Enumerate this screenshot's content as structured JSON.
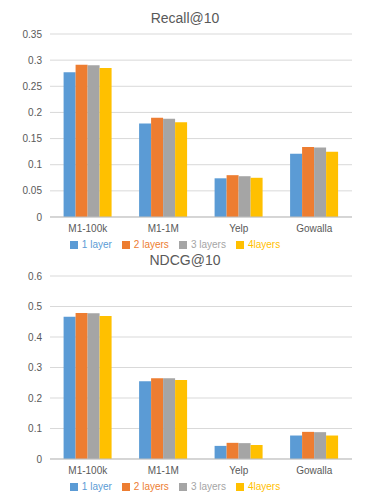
{
  "chart_data": [
    {
      "type": "bar",
      "title": "Recall@10",
      "categories": [
        "M1-100k",
        "M1-1M",
        "Yelp",
        "Gowalla"
      ],
      "series": [
        {
          "name": "1 layer",
          "color": "#5B9BD5",
          "values": [
            0.277,
            0.179,
            0.074,
            0.121
          ]
        },
        {
          "name": "2 layers",
          "color": "#ED7D31",
          "values": [
            0.291,
            0.19,
            0.08,
            0.134
          ]
        },
        {
          "name": "3 layers",
          "color": "#A5A5A5",
          "values": [
            0.29,
            0.188,
            0.078,
            0.133
          ]
        },
        {
          "name": "4layers",
          "color": "#FFC000",
          "values": [
            0.285,
            0.181,
            0.075,
            0.125
          ]
        }
      ],
      "ylim": [
        0,
        0.35
      ],
      "yticks": [
        0,
        0.05,
        0.1,
        0.15,
        0.2,
        0.25,
        0.3,
        0.35
      ],
      "grid": true,
      "legend": "bottom"
    },
    {
      "type": "bar",
      "title": "NDCG@10",
      "categories": [
        "M1-100k",
        "M1-1M",
        "Yelp",
        "Gowalla"
      ],
      "series": [
        {
          "name": "1 layer",
          "color": "#5B9BD5",
          "values": [
            0.466,
            0.255,
            0.043,
            0.077
          ]
        },
        {
          "name": "2 layers",
          "color": "#ED7D31",
          "values": [
            0.479,
            0.265,
            0.053,
            0.089
          ]
        },
        {
          "name": "3 layers",
          "color": "#A5A5A5",
          "values": [
            0.478,
            0.265,
            0.052,
            0.088
          ]
        },
        {
          "name": "4layers",
          "color": "#FFC000",
          "values": [
            0.469,
            0.259,
            0.046,
            0.077
          ]
        }
      ],
      "ylim": [
        0,
        0.6
      ],
      "yticks": [
        0,
        0.1,
        0.2,
        0.3,
        0.4,
        0.5,
        0.6
      ],
      "grid": true,
      "legend": "bottom"
    }
  ]
}
